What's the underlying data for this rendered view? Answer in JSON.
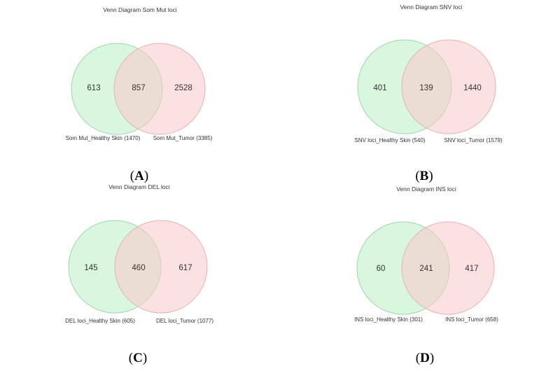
{
  "colors": {
    "left_fill": "#b9f0c5",
    "left_stroke": "#9ad8a6",
    "right_fill": "#f9c9cb",
    "right_stroke": "#e8b0b2",
    "overlap_hint": "#d5d4b4"
  },
  "panels": [
    {
      "title": "Venn Diagram Som Mut loci",
      "letter": "A",
      "left_only": "613",
      "overlap": "857",
      "right_only": "2528",
      "left_label": "Som Mut_Healthy Skin (1470)",
      "right_label": "Som Mut_Tumor (3385)"
    },
    {
      "title": "Venn Diagram SNV loci",
      "letter": "B",
      "left_only": "401",
      "overlap": "139",
      "right_only": "1440",
      "left_label": "SNV loci_Healthy Skin (540)",
      "right_label": "SNV loci_Tumor (1579)"
    },
    {
      "title": "Venn Diagram DEL loci",
      "letter": "C",
      "left_only": "145",
      "overlap": "460",
      "right_only": "617",
      "left_label": "DEL loci_Healthy Skin (605)",
      "right_label": "DEL loci_Tumor (1077)"
    },
    {
      "title": "Venn Diagram INS loci",
      "letter": "D",
      "left_only": "60",
      "overlap": "241",
      "right_only": "417",
      "left_label": "INS loci_Healthy Skin (301)",
      "right_label": "INS loci_Tumor (658)"
    }
  ]
}
